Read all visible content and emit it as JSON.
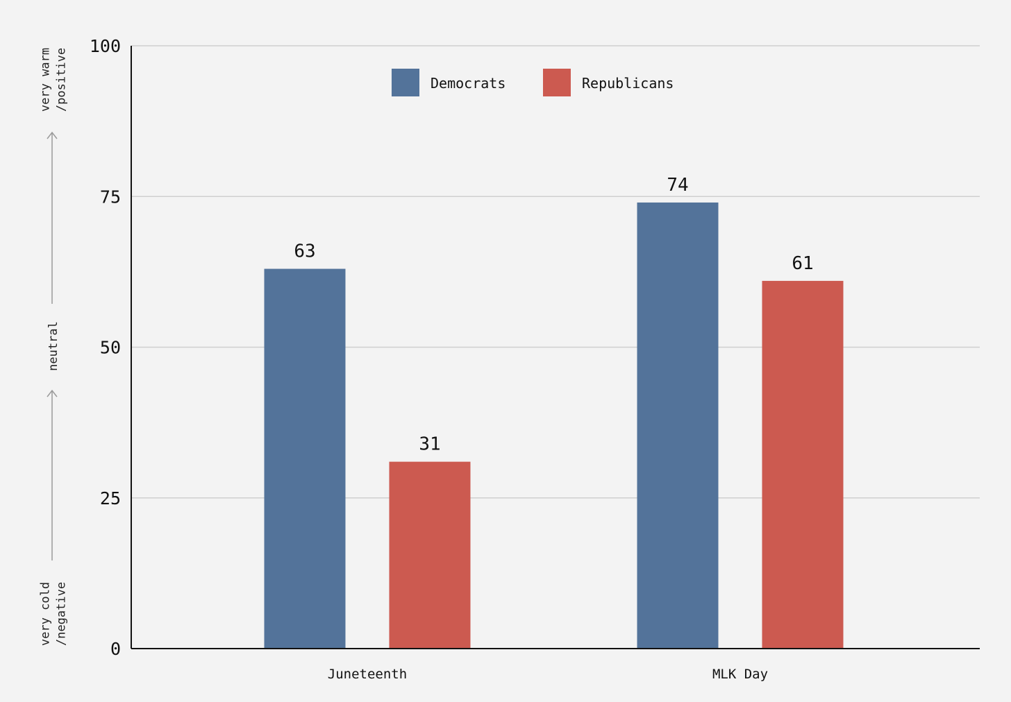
{
  "chart_data": {
    "type": "bar",
    "categories": [
      "Juneteenth",
      "MLK Day"
    ],
    "series": [
      {
        "name": "Democrats",
        "values": [
          63,
          74
        ],
        "color": "#53739a"
      },
      {
        "name": "Republicans",
        "values": [
          31,
          61
        ],
        "color": "#cc5a50"
      }
    ],
    "ylim": [
      0,
      100
    ],
    "yticks": [
      0,
      25,
      50,
      75,
      100
    ],
    "grid": true,
    "legend_position": "top-center",
    "y_scale_annotations": {
      "bottom": [
        "very cold",
        "/negative"
      ],
      "middle": [
        "neutral"
      ],
      "top": [
        "very warm",
        "/positive"
      ]
    },
    "colors": {
      "background": "#f3f3f3",
      "grid": "#cfcfcf",
      "axis": "#111111",
      "arrow": "#9a9a9a"
    }
  }
}
